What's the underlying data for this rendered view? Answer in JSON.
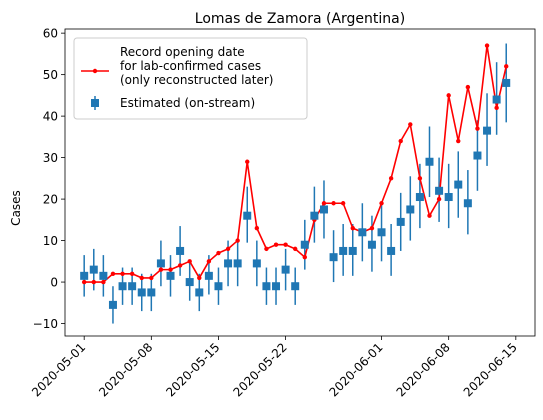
{
  "chart_data": {
    "type": "line",
    "title": "Lomas de Zamora (Argentina)",
    "xlabel": "",
    "ylabel": "Cases",
    "ylim": [
      -13,
      61
    ],
    "xlim": [
      "2020-04-29",
      "2020-06-17"
    ],
    "x_ticks": [
      "2020-05-01",
      "2020-05-08",
      "2020-05-15",
      "2020-05-22",
      "2020-06-01",
      "2020-06-08",
      "2020-06-15"
    ],
    "y_ticks": [
      -10,
      0,
      10,
      20,
      30,
      40,
      50,
      60
    ],
    "legend_position": "upper-left",
    "colors": {
      "line": "#ff0000",
      "estimate": "#1f77b4"
    },
    "series": [
      {
        "name": "Record opening date\nfor lab-confirmed cases\n(only reconstructed later)",
        "style": "line-with-dots",
        "x": [
          "2020-05-01",
          "2020-05-02",
          "2020-05-03",
          "2020-05-04",
          "2020-05-05",
          "2020-05-06",
          "2020-05-07",
          "2020-05-08",
          "2020-05-09",
          "2020-05-10",
          "2020-05-11",
          "2020-05-12",
          "2020-05-13",
          "2020-05-14",
          "2020-05-15",
          "2020-05-16",
          "2020-05-17",
          "2020-05-18",
          "2020-05-19",
          "2020-05-20",
          "2020-05-21",
          "2020-05-22",
          "2020-05-23",
          "2020-05-24",
          "2020-05-25",
          "2020-05-26",
          "2020-05-27",
          "2020-05-28",
          "2020-05-29",
          "2020-05-30",
          "2020-05-31",
          "2020-06-01",
          "2020-06-02",
          "2020-06-03",
          "2020-06-04",
          "2020-06-05",
          "2020-06-06",
          "2020-06-07",
          "2020-06-08",
          "2020-06-09",
          "2020-06-10",
          "2020-06-11",
          "2020-06-12",
          "2020-06-13",
          "2020-06-14"
        ],
        "values": [
          0,
          0,
          0,
          2,
          2,
          2,
          1,
          1,
          3,
          3,
          4,
          5,
          1,
          5,
          7,
          8,
          10,
          29,
          13,
          8,
          9,
          9,
          8,
          6,
          15,
          19,
          19,
          19,
          13,
          12,
          13,
          19,
          25,
          34,
          38,
          25,
          16,
          20,
          45,
          34,
          47,
          37,
          57,
          42,
          52
        ]
      },
      {
        "name": "Estimated (on-stream)",
        "style": "square-with-errorbars",
        "x": [
          "2020-05-01",
          "2020-05-02",
          "2020-05-03",
          "2020-05-04",
          "2020-05-05",
          "2020-05-06",
          "2020-05-07",
          "2020-05-08",
          "2020-05-09",
          "2020-05-10",
          "2020-05-11",
          "2020-05-12",
          "2020-05-13",
          "2020-05-14",
          "2020-05-15",
          "2020-05-16",
          "2020-05-17",
          "2020-05-18",
          "2020-05-19",
          "2020-05-20",
          "2020-05-21",
          "2020-05-22",
          "2020-05-23",
          "2020-05-24",
          "2020-05-25",
          "2020-05-26",
          "2020-05-27",
          "2020-05-28",
          "2020-05-29",
          "2020-05-30",
          "2020-05-31",
          "2020-06-01",
          "2020-06-02",
          "2020-06-03",
          "2020-06-04",
          "2020-06-05",
          "2020-06-06",
          "2020-06-07",
          "2020-06-08",
          "2020-06-09",
          "2020-06-10",
          "2020-06-11",
          "2020-06-12",
          "2020-06-13",
          "2020-06-14"
        ],
        "values": [
          1.5,
          3,
          1.5,
          -5.5,
          -1,
          -1,
          -2.5,
          -2.5,
          4.5,
          1.5,
          7.5,
          0,
          -2.5,
          1.5,
          -1,
          4.5,
          4.5,
          16,
          4.5,
          -1,
          -1,
          3,
          -1,
          9,
          16,
          17.5,
          6,
          7.5,
          7.5,
          12,
          9,
          12,
          7.5,
          14.5,
          17.5,
          20.5,
          29,
          22,
          20.5,
          23.5,
          19,
          30.5,
          36.5,
          44,
          48
        ],
        "err_low": [
          -3.5,
          -2,
          -3.5,
          -10,
          -5.5,
          -5.5,
          -7,
          -7,
          -1,
          -3.5,
          1.5,
          -4.5,
          -7,
          -3,
          -5.5,
          -1,
          -1,
          9.5,
          -1,
          -5.5,
          -5.5,
          -2,
          -5.5,
          3,
          9.5,
          10.5,
          0,
          1.5,
          1.5,
          5,
          2.5,
          5,
          1.5,
          7.5,
          10,
          13,
          20.5,
          14.5,
          13,
          15.5,
          11.5,
          22,
          28,
          35.5,
          38.5
        ],
        "err_high": [
          6.5,
          8,
          6.5,
          -1,
          3.5,
          3.5,
          2,
          2,
          10,
          6.5,
          13.5,
          4.5,
          2,
          6.5,
          3.5,
          10,
          10,
          23,
          10,
          3.5,
          3.5,
          8,
          3.5,
          15,
          23,
          24.5,
          12.5,
          14,
          14,
          19,
          16,
          19,
          14,
          21.5,
          25.5,
          28.5,
          37.5,
          30,
          28.5,
          31.5,
          27,
          39,
          45.5,
          53,
          57.5
        ]
      }
    ]
  }
}
